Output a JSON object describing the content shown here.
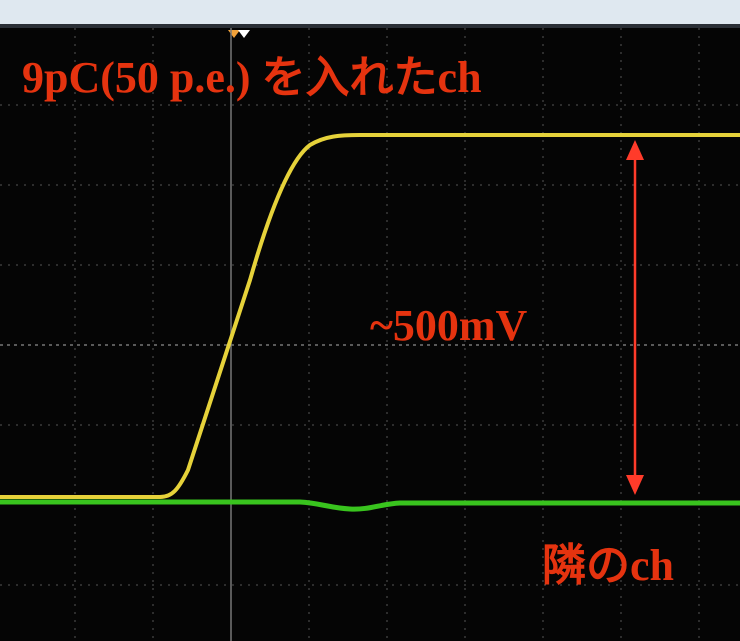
{
  "annotations": {
    "signal_channel": "9pC(50 p.e.) を入れたch",
    "amplitude": "~500mV",
    "neighbor_channel": "隣のch"
  }
}
